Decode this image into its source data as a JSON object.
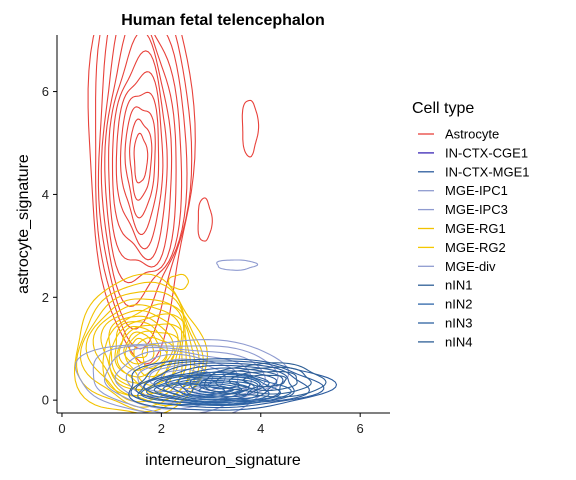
{
  "chart_data": {
    "type": "contour",
    "title": "Human fetal telencephalon",
    "xlabel": "interneuron_signature",
    "ylabel": "astrocyte_signature",
    "xlim": [
      -0.1,
      6.6
    ],
    "ylim": [
      -0.25,
      7.1
    ],
    "x_ticks": [
      0,
      2,
      4,
      6
    ],
    "y_ticks": [
      0,
      2,
      4,
      6
    ],
    "grid": false,
    "legend": {
      "title": "Cell type",
      "placement": "right",
      "entries": [
        {
          "name": "Astrocyte",
          "color": "#e8423b"
        },
        {
          "name": "IN-CTX-CGE1",
          "color": "#3b27b5"
        },
        {
          "name": "IN-CTX-MGE1",
          "color": "#2c5c9e"
        },
        {
          "name": "MGE-IPC1",
          "color": "#8f9bd0"
        },
        {
          "name": "MGE-IPC3",
          "color": "#8f9bd0"
        },
        {
          "name": "MGE-RG1",
          "color": "#f2c200"
        },
        {
          "name": "MGE-RG2",
          "color": "#f5c800"
        },
        {
          "name": "MGE-div",
          "color": "#8f9bd0"
        },
        {
          "name": "nIN1",
          "color": "#2e5f96"
        },
        {
          "name": "nIN2",
          "color": "#2e66a8"
        },
        {
          "name": "nIN3",
          "color": "#2e62a0"
        },
        {
          "name": "nIN4",
          "color": "#2e5f96"
        }
      ]
    },
    "density_blobs": [
      {
        "series": "Astrocyte",
        "color": "#e8423b",
        "cx": 1.58,
        "cy": 4.7,
        "rx": 1.05,
        "ry": 3.7,
        "levels": 12,
        "tilt": 0
      },
      {
        "series": "Astrocyte",
        "color": "#e8423b",
        "cx": 3.78,
        "cy": 5.3,
        "rx": 0.16,
        "ry": 0.55,
        "levels": 1,
        "tilt": 0
      },
      {
        "series": "Astrocyte",
        "color": "#e8423b",
        "cx": 2.87,
        "cy": 3.5,
        "rx": 0.14,
        "ry": 0.42,
        "levels": 1,
        "tilt": 0
      },
      {
        "series": "MGE-RG1",
        "color": "#f2c200",
        "cx": 1.55,
        "cy": 1.0,
        "rx": 1.3,
        "ry": 1.35,
        "levels": 11,
        "tilt": 0
      },
      {
        "series": "MGE-RG2",
        "color": "#f5c800",
        "cx": 1.85,
        "cy": 0.85,
        "rx": 1.0,
        "ry": 0.95,
        "levels": 6,
        "tilt": 0
      },
      {
        "series": "MGE-RG1",
        "color": "#f2c200",
        "cx": 2.35,
        "cy": 2.3,
        "rx": 0.2,
        "ry": 0.14,
        "levels": 1,
        "tilt": 0
      },
      {
        "series": "MGE-IPC1",
        "color": "#8f9bd0",
        "cx": 2.4,
        "cy": 0.45,
        "rx": 2.1,
        "ry": 0.75,
        "levels": 8,
        "tilt": 0
      },
      {
        "series": "MGE-div",
        "color": "#8f9bd0",
        "cx": 3.5,
        "cy": 2.63,
        "rx": 0.4,
        "ry": 0.1,
        "levels": 1,
        "tilt": 0
      },
      {
        "series": "IN-CTX-MGE1",
        "color": "#2c5c9e",
        "cx": 3.25,
        "cy": 0.3,
        "rx": 2.05,
        "ry": 0.5,
        "levels": 10,
        "tilt": 0.08
      },
      {
        "series": "nIN2",
        "color": "#2e66a8",
        "cx": 3.0,
        "cy": 0.2,
        "rx": 1.5,
        "ry": 0.32,
        "levels": 9,
        "tilt": 0
      },
      {
        "series": "nIN4",
        "color": "#2e5f96",
        "cx": 4.1,
        "cy": 0.38,
        "rx": 1.2,
        "ry": 0.32,
        "levels": 4,
        "tilt": 0.05
      }
    ]
  }
}
